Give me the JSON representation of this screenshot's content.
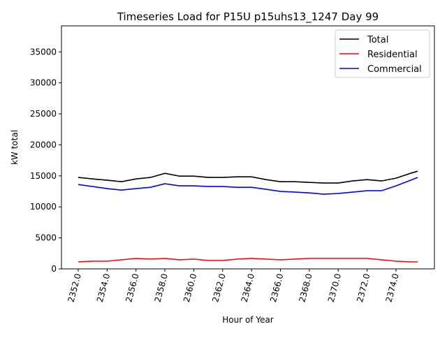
{
  "chart_data": {
    "type": "line",
    "title": "Timeseries Load for P15U p15uhs13_1247  Day 99",
    "xlabel": "Hour of Year",
    "ylabel": "kW total",
    "xlim": [
      2350.84,
      2376.66
    ],
    "ylim": [
      0,
      39200
    ],
    "grid": false,
    "legend_position": "top-right",
    "xticks": [
      2352,
      2354,
      2356,
      2358,
      2360,
      2362,
      2364,
      2366,
      2368,
      2370,
      2372,
      2374
    ],
    "xtick_labels": [
      "2352.0",
      "2354.0",
      "2356.0",
      "2358.0",
      "2360.0",
      "2362.0",
      "2364.0",
      "2366.0",
      "2368.0",
      "2370.0",
      "2372.0",
      "2374.0"
    ],
    "yticks": [
      0,
      5000,
      10000,
      15000,
      20000,
      25000,
      30000,
      35000
    ],
    "ytick_labels": [
      "0",
      "5000",
      "10000",
      "15000",
      "20000",
      "25000",
      "30000",
      "35000"
    ],
    "x": [
      2352,
      2353,
      2354,
      2355,
      2356,
      2357,
      2358,
      2359,
      2360,
      2361,
      2362,
      2363,
      2364,
      2365,
      2366,
      2367,
      2368,
      2369,
      2370,
      2371,
      2372,
      2373,
      2374,
      2375,
      2375.5
    ],
    "series": [
      {
        "name": "Total",
        "color": "#000000",
        "values": [
          14740,
          14510,
          14290,
          14060,
          14510,
          14740,
          15410,
          14960,
          14960,
          14740,
          14740,
          14850,
          14850,
          14400,
          14060,
          14060,
          13950,
          13840,
          13840,
          14180,
          14400,
          14180,
          14630,
          15410,
          15750
        ]
      },
      {
        "name": "Residential",
        "color": "#ff0000",
        "values": [
          1125,
          1240,
          1240,
          1460,
          1690,
          1580,
          1690,
          1460,
          1580,
          1350,
          1350,
          1580,
          1690,
          1580,
          1460,
          1580,
          1690,
          1690,
          1690,
          1690,
          1690,
          1460,
          1240,
          1125,
          1125
        ]
      },
      {
        "name": "Commercial",
        "color": "#0000ff",
        "values": [
          13610,
          13280,
          12940,
          12710,
          12940,
          13160,
          13730,
          13390,
          13390,
          13280,
          13280,
          13160,
          13160,
          12830,
          12490,
          12380,
          12260,
          12040,
          12150,
          12380,
          12600,
          12600,
          13390,
          14290,
          14740
        ]
      }
    ]
  }
}
